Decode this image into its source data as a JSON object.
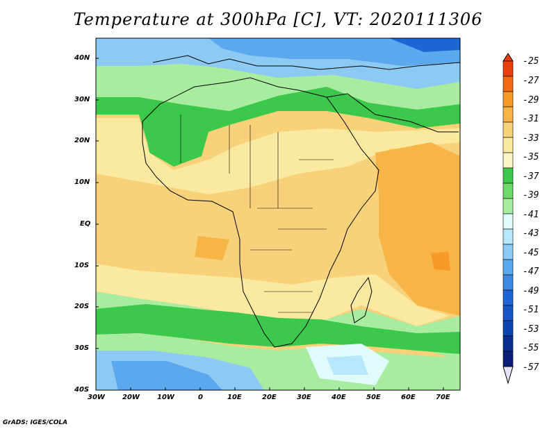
{
  "title": "Temperature at 300hPa [C], VT: 2020111306",
  "credit": "GrADS: IGES/COLA",
  "map": {
    "lat_labels": [
      "40N",
      "30N",
      "20N",
      "10N",
      "EQ",
      "10S",
      "20S",
      "30S",
      "40S"
    ],
    "lon_labels": [
      "30W",
      "20W",
      "10W",
      "0",
      "10E",
      "20E",
      "30E",
      "40E",
      "50E",
      "60E",
      "70E"
    ]
  },
  "colorbar": {
    "levels": [
      "-25",
      "-27",
      "-29",
      "-31",
      "-33",
      "-35",
      "-37",
      "-39",
      "-41",
      "-43",
      "-45",
      "-47",
      "-49",
      "-51",
      "-53",
      "-55",
      "-57"
    ],
    "colors": {
      "above_-25": "#e8400c",
      "-27_-25": "#f46a12",
      "-29_-27": "#f79a26",
      "-31_-29": "#f7b548",
      "-33_-31": "#f8d27a",
      "-35_-33": "#fbe9a0",
      "-37_-35": "#3cc84a",
      "-39_-37": "#6fd86a",
      "-41_-39": "#a8eca0",
      "-43_-41": "#e0fcfa",
      "-45_-43": "#b8e6fa",
      "-47_-45": "#8ccaf4",
      "-49_-47": "#5ca8ec",
      "-51_-49": "#3c88e4",
      "-53_-51": "#1f66d4",
      "-55_-53": "#0c44b0",
      "below_-57": "#0a1e78"
    }
  }
}
